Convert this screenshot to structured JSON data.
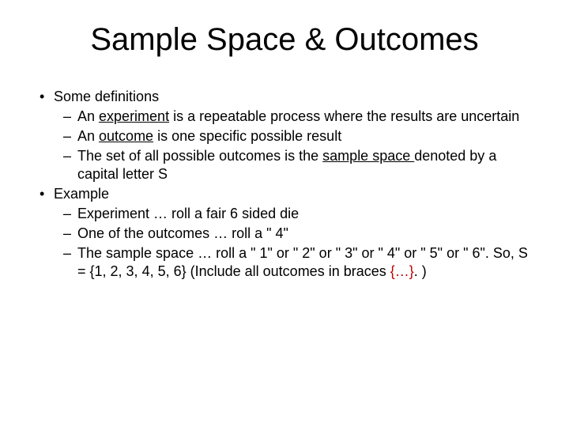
{
  "title_fontsize": 40,
  "body_fontsize": 18,
  "background_color": "#ffffff",
  "text_color": "#000000",
  "accent_color": "#c00000",
  "slide": {
    "title": "Sample Space & Outcomes",
    "bullets": {
      "b1": "Some definitions",
      "b1_1_a": "An ",
      "b1_1_u": "experiment",
      "b1_1_b": " is a repeatable process where the results are uncertain",
      "b1_2_a": "An ",
      "b1_2_u": "outcome",
      "b1_2_b": " is one specific possible result",
      "b1_3_a": "The set of all possible outcomes is the ",
      "b1_3_u": "sample space ",
      "b1_3_b": "denoted by a capital letter S",
      "b2": "Example",
      "b2_1": "Experiment … roll a fair 6 sided die",
      "b2_2": "One of the outcomes … roll a \" 4\"",
      "b2_3_a": "The sample space … roll a \" 1\" or \" 2\" or \" 3\" or \" 4\" or \" 5\" or \" 6\". So, S = {1, 2, 3, 4, 5, 6} (Include all outcomes in braces ",
      "b2_3_r": "{…}",
      "b2_3_b": ". )"
    }
  }
}
